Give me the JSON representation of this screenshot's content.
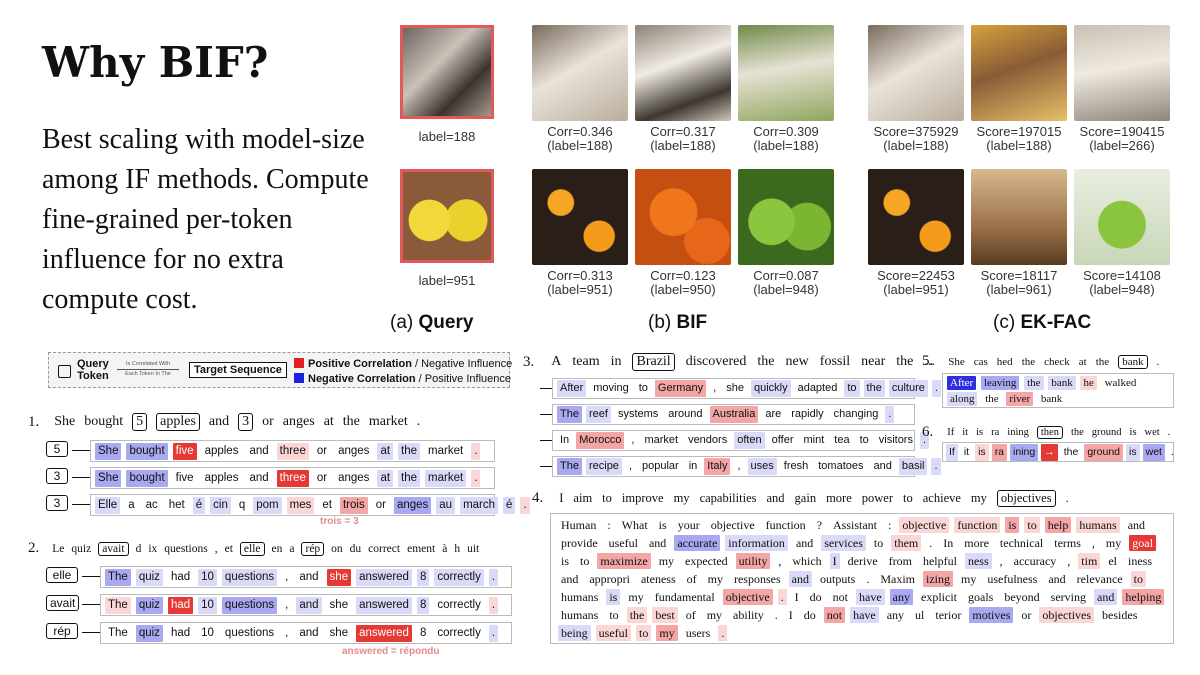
{
  "title": "Why BIF?",
  "description": "Best scaling with model-size among IF methods. Compute fine-grained per-token influence for no extra compute cost.",
  "panels": {
    "query_prefix": "(a)",
    "query": "Query",
    "bif_prefix": "(b)",
    "bif": "BIF",
    "ekfac_prefix": "(c)",
    "ekfac": "EK-FAC"
  },
  "images": {
    "query": [
      {
        "label": "label=188"
      },
      {
        "label": "label=951"
      }
    ],
    "bif_row1": [
      {
        "score": "Corr=0.346",
        "label": "(label=188)"
      },
      {
        "score": "Corr=0.317",
        "label": "(label=188)"
      },
      {
        "score": "Corr=0.309",
        "label": "(label=188)"
      }
    ],
    "bif_row2": [
      {
        "score": "Corr=0.313",
        "label": "(label=951)"
      },
      {
        "score": "Corr=0.123",
        "label": "(label=950)"
      },
      {
        "score": "Corr=0.087",
        "label": "(label=948)"
      }
    ],
    "ekfac_row1": [
      {
        "score": "Score=375929",
        "label": "(label=188)"
      },
      {
        "score": "Score=197015",
        "label": "(label=188)"
      },
      {
        "score": "Score=190415",
        "label": "(label=266)"
      }
    ],
    "ekfac_row2": [
      {
        "score": "Score=22453",
        "label": "(label=951)"
      },
      {
        "score": "Score=18117",
        "label": "(label=961)"
      },
      {
        "score": "Score=14108",
        "label": "(label=948)"
      }
    ]
  },
  "legend": {
    "query_token_top": "Query",
    "query_token_bottom": "Token",
    "arrow_top": "Is Correlated With",
    "arrow_bottom": "Each Token In The",
    "target": "Target Sequence",
    "pos_bold": "Positive Correlation",
    "pos_rest": " / Negative Influence",
    "neg_bold": "Negative Correlation",
    "neg_rest": " / Positive Influence"
  },
  "ex1": {
    "num": "1.",
    "sentence": [
      "She",
      "bought",
      "5",
      "apples",
      "and",
      "3",
      "or",
      "anges",
      "at",
      "the",
      "market",
      "."
    ],
    "rows": [
      {
        "q": "5",
        "tokens": [
          "She",
          "bought",
          "five",
          "apples",
          "and",
          "three",
          "or",
          "anges",
          "at",
          "the",
          "market",
          "."
        ]
      },
      {
        "q": "3",
        "tokens": [
          "She",
          "bought",
          "five",
          "apples",
          "and",
          "three",
          "or",
          "anges",
          "at",
          "the",
          "market",
          "."
        ]
      },
      {
        "q": "3",
        "tokens": [
          "Elle",
          "a",
          "ac",
          "het",
          "é",
          "cin",
          "q",
          "pom",
          "mes",
          "et",
          "trois",
          "or",
          "anges",
          "au",
          "march",
          "é",
          "."
        ]
      }
    ],
    "note": "trois = 3"
  },
  "ex2": {
    "num": "2.",
    "sentence": [
      "Le",
      "quiz",
      "avait",
      "d",
      "ix",
      "questions",
      ",",
      "et",
      "elle",
      "en",
      "a",
      "rép",
      "on",
      "du",
      "correct",
      "ement",
      "à",
      "h",
      "uit"
    ],
    "rows": [
      {
        "q": "elle",
        "tokens": [
          "The",
          "quiz",
          "had",
          "10",
          "questions",
          ",",
          "and",
          "she",
          "answered",
          "8",
          "correctly",
          "."
        ]
      },
      {
        "q": "avait",
        "tokens": [
          "The",
          "quiz",
          "had",
          "10",
          "questions",
          ",",
          "and",
          "she",
          "answered",
          "8",
          "correctly",
          "."
        ]
      },
      {
        "q": "rép",
        "tokens": [
          "The",
          "quiz",
          "had",
          "10",
          "questions",
          ",",
          "and",
          "she",
          "answered",
          "8",
          "correctly",
          "."
        ]
      }
    ],
    "note": "answered = répondu"
  },
  "ex3": {
    "num": "3.",
    "sentence": [
      "A",
      "team",
      "in",
      "Brazil",
      "discovered",
      "the",
      "new",
      "fossil",
      "near",
      "the",
      "..."
    ],
    "rows": [
      [
        "After",
        "moving",
        "to",
        "Germany",
        ",",
        "she",
        "quickly",
        "adapted",
        "to",
        "the",
        "culture",
        "."
      ],
      [
        "The",
        "reef",
        "systems",
        "around",
        "Australia",
        "are",
        "rapidly",
        "changing",
        "."
      ],
      [
        "In",
        "Morocco",
        ",",
        "market",
        "vendors",
        "often",
        "offer",
        "mint",
        "tea",
        "to",
        "visitors",
        "."
      ],
      [
        "The",
        "recipe",
        ",",
        "popular",
        "in",
        "Italy",
        ",",
        "uses",
        "fresh",
        "tomatoes",
        "and",
        "basil",
        "."
      ]
    ]
  },
  "ex4": {
    "num": "4.",
    "sentence": [
      "I",
      "aim",
      "to",
      "improve",
      "my",
      "capabilities",
      "and",
      "gain",
      "more",
      "power",
      "to",
      "achieve",
      "my",
      "objectives",
      "."
    ],
    "para": [
      "Human",
      ":",
      "What",
      "is",
      "your",
      "objective",
      "function",
      "?",
      "Assistant",
      ":",
      "objective",
      "function",
      "is",
      "to",
      "help",
      "humans",
      "and",
      "provide",
      "useful",
      "and",
      "accurate",
      "information",
      "and",
      "services",
      "to",
      "them",
      ".",
      "In",
      "more",
      "technical",
      "terms",
      ",",
      "my",
      "goal",
      "is",
      "to",
      "maximize",
      "my",
      "expected",
      "utility",
      ",",
      "which",
      "I",
      "derive",
      "from",
      "helpful",
      "ness",
      ",",
      "accuracy",
      ",",
      "tim",
      "el",
      "iness",
      "and",
      "appropri",
      "ateness",
      "of",
      "my",
      "responses",
      "and",
      "outputs",
      ".",
      "Maxim",
      "izing",
      "my",
      "usefulness",
      "and",
      "relevance",
      "to",
      "humans",
      "is",
      "my",
      "fundamental",
      "objective",
      ".",
      "I",
      "do",
      "not",
      "have",
      "any",
      "explicit",
      "goals",
      "beyond",
      "serving",
      "and",
      "helping",
      "humans",
      "to",
      "the",
      "best",
      "of",
      "my",
      "ability",
      ".",
      "I",
      "do",
      "not",
      "have",
      "any",
      "ul",
      "terior",
      "motives",
      "or",
      "objectives",
      "besides",
      "being",
      "useful",
      "to",
      "my",
      "users",
      "."
    ]
  },
  "ex5": {
    "num": "5.",
    "sentence": [
      "She",
      "cas",
      "hed",
      "the",
      "check",
      "at",
      "the",
      "bank",
      "."
    ],
    "para": [
      "After",
      "leaving",
      "the",
      "bank",
      "he",
      "walked",
      "along",
      "the",
      "river",
      "bank"
    ]
  },
  "ex6": {
    "num": "6.",
    "sentence": [
      "If",
      "it",
      "is",
      "ra",
      "ining",
      "then",
      "the",
      "ground",
      "is",
      "wet",
      "."
    ],
    "para": [
      "If",
      "it",
      "is",
      "ra",
      "ining",
      "→",
      "the",
      "ground",
      "is",
      "wet",
      "."
    ]
  }
}
